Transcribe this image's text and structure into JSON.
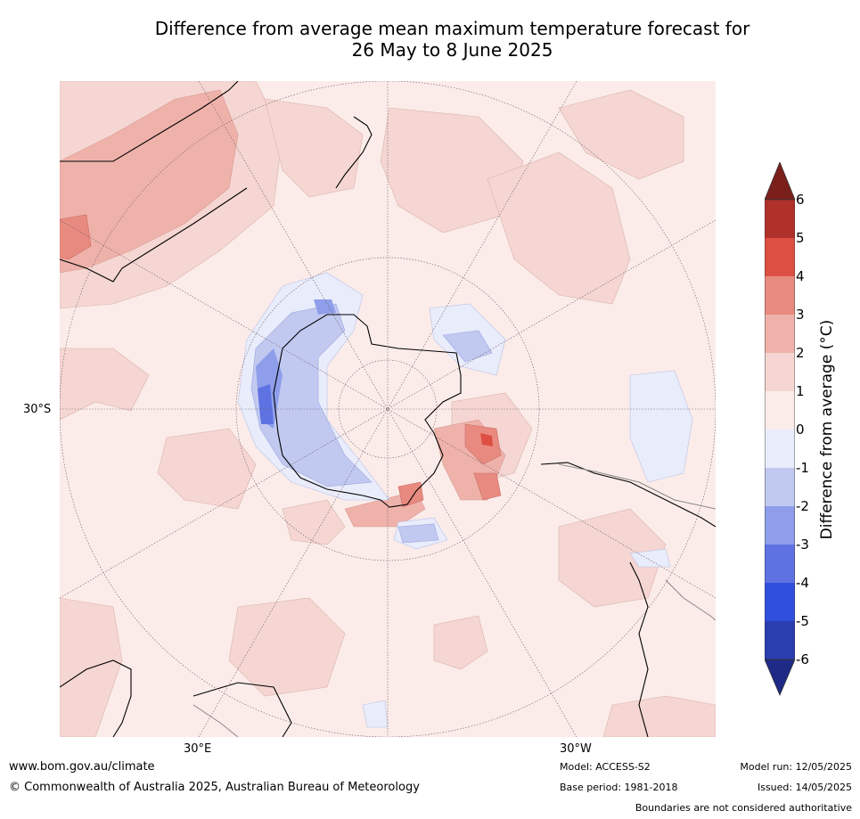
{
  "title": {
    "line1": "Difference from average mean maximum temperature forecast for",
    "line2": "26 May to 8 June 2025"
  },
  "map": {
    "projection": "south polar stereographic",
    "labels": {
      "lat_30s": "30°S",
      "lon_30e": "30°E",
      "lon_30w": "30°W"
    }
  },
  "colorbar": {
    "title": "Difference from average (°C)",
    "ticks": [
      "6",
      "5",
      "4",
      "3",
      "2",
      "1",
      "0",
      "-1",
      "-2",
      "-3",
      "-4",
      "-5",
      "-6"
    ],
    "colors": {
      "gt6": "#7a1f1a",
      "5_6": "#b0302a",
      "4_5": "#dd4f43",
      "3_4": "#e98a80",
      "2_3": "#efb2aa",
      "1_2": "#f5d6d2",
      "0_1": "#fbece9",
      "m1_0": "#e9ecfa",
      "m2_m1": "#c1c9f0",
      "m3_m2": "#8f9eea",
      "m4_m3": "#5e72e1",
      "m5_m4": "#2f4fdc",
      "m6_m5": "#2a3eb0",
      "lt_m6": "#1e2a85"
    }
  },
  "footer": {
    "website": "www.bom.gov.au/climate",
    "copyright": "© Commonwealth of Australia 2025, Australian Bureau of Meteorology",
    "model": "Model: ACCESS-S2",
    "base_period": "Base period: 1981-2018",
    "model_run": "Model run: 12/05/2025",
    "issued": "Issued: 14/05/2025",
    "disclaimer": "Boundaries are not considered authoritative"
  }
}
